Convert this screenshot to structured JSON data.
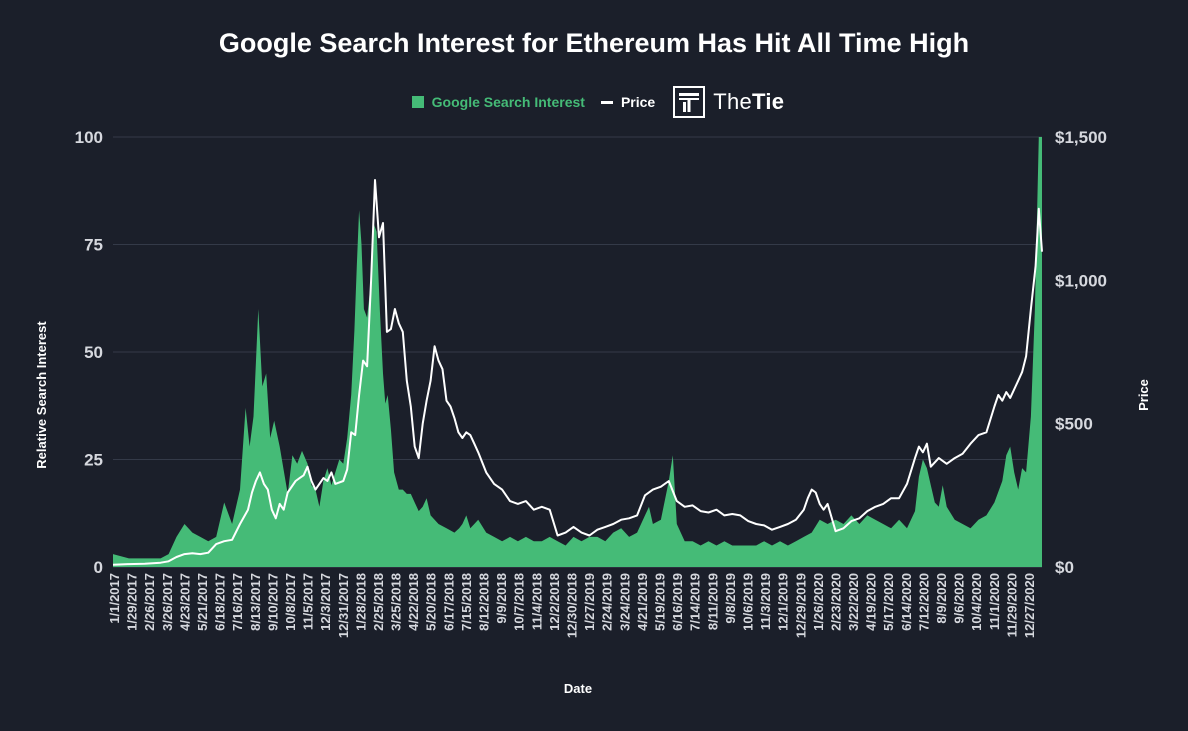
{
  "chart_data": {
    "type": "area",
    "title": "Google Search Interest for Ethereum Has Hit All Time High",
    "xlabel": "Date",
    "ylabel_left": "Relative Search Interest",
    "ylabel_right": "Price",
    "ylim_left": [
      0,
      100
    ],
    "ylim_right": [
      0,
      1500
    ],
    "yticks_left": [
      "0",
      "25",
      "50",
      "75",
      "100"
    ],
    "yticks_right": [
      "$0",
      "$500",
      "$1,000",
      "$1,500"
    ],
    "grid": true,
    "legend_position": "top-center",
    "x_tick_labels": [
      "1/1/2017",
      "1/29/2017",
      "2/26/2017",
      "3/26/2017",
      "4/23/2017",
      "5/21/2017",
      "6/18/2017",
      "7/16/2017",
      "8/13/2017",
      "9/10/2017",
      "10/8/2017",
      "11/5/2017",
      "12/3/2017",
      "12/31/2017",
      "1/28/2018",
      "2/25/2018",
      "3/25/2018",
      "4/22/2018",
      "5/20/2018",
      "6/17/2018",
      "7/15/2018",
      "8/12/2018",
      "9/9/2018",
      "10/7/2018",
      "11/4/2018",
      "12/2/2018",
      "12/30/2018",
      "1/27/2019",
      "2/24/2019",
      "3/24/2019",
      "4/21/2019",
      "5/19/2019",
      "6/16/2019",
      "7/14/2019",
      "8/11/2019",
      "9/8/2019",
      "10/6/2019",
      "11/3/2019",
      "12/1/2019",
      "12/29/2019",
      "1/26/2020",
      "2/23/2020",
      "3/22/2020",
      "4/19/2020",
      "5/17/2020",
      "6/14/2020",
      "7/12/2020",
      "8/9/2020",
      "9/6/2020",
      "10/4/2020",
      "11/1/2020",
      "11/29/2020",
      "12/27/2020"
    ],
    "series": [
      {
        "name": "Google Search Interest",
        "axis": "left",
        "color": "#45bb77",
        "points": [
          [
            0,
            3
          ],
          [
            2,
            2
          ],
          [
            4,
            2
          ],
          [
            6,
            2
          ],
          [
            7,
            3
          ],
          [
            8,
            7
          ],
          [
            9,
            10
          ],
          [
            10,
            8
          ],
          [
            11,
            7
          ],
          [
            12,
            6
          ],
          [
            13,
            7
          ],
          [
            14,
            15
          ],
          [
            15,
            10
          ],
          [
            16,
            18
          ],
          [
            16.7,
            37
          ],
          [
            17.2,
            28
          ],
          [
            17.7,
            35
          ],
          [
            18.3,
            60
          ],
          [
            18.8,
            42
          ],
          [
            19.3,
            45
          ],
          [
            19.8,
            30
          ],
          [
            20.3,
            34
          ],
          [
            21,
            28
          ],
          [
            22,
            17
          ],
          [
            22.6,
            26
          ],
          [
            23.2,
            24
          ],
          [
            23.8,
            27
          ],
          [
            24.5,
            24
          ],
          [
            25,
            19
          ],
          [
            25.5,
            18
          ],
          [
            26,
            14
          ],
          [
            26.5,
            20
          ],
          [
            27,
            23
          ],
          [
            27.5,
            19
          ],
          [
            28,
            22
          ],
          [
            28.5,
            25
          ],
          [
            29,
            24
          ],
          [
            29.5,
            30
          ],
          [
            30,
            40
          ],
          [
            30.4,
            55
          ],
          [
            30.7,
            70
          ],
          [
            31,
            83
          ],
          [
            31.3,
            75
          ],
          [
            31.6,
            60
          ],
          [
            32,
            58
          ],
          [
            32.4,
            65
          ],
          [
            32.8,
            80
          ],
          [
            33.2,
            78
          ],
          [
            33.6,
            60
          ],
          [
            34,
            45
          ],
          [
            34.3,
            38
          ],
          [
            34.6,
            40
          ],
          [
            35,
            32
          ],
          [
            35.4,
            22
          ],
          [
            36,
            18
          ],
          [
            36.5,
            18
          ],
          [
            37,
            17
          ],
          [
            37.5,
            17
          ],
          [
            38,
            15
          ],
          [
            38.5,
            13
          ],
          [
            39,
            14
          ],
          [
            39.5,
            16
          ],
          [
            40,
            12
          ],
          [
            41,
            10
          ],
          [
            42,
            9
          ],
          [
            43,
            8
          ],
          [
            43.6,
            9
          ],
          [
            44,
            10
          ],
          [
            44.5,
            12
          ],
          [
            45,
            9
          ],
          [
            45.5,
            10
          ],
          [
            46,
            11
          ],
          [
            47,
            8
          ],
          [
            48,
            7
          ],
          [
            49,
            6
          ],
          [
            50,
            7
          ],
          [
            51,
            6
          ],
          [
            52,
            7
          ],
          [
            53,
            6
          ],
          [
            54,
            6
          ],
          [
            55,
            7
          ],
          [
            56,
            6
          ],
          [
            57,
            5
          ],
          [
            58,
            7
          ],
          [
            59,
            6
          ],
          [
            60,
            7
          ],
          [
            61,
            7
          ],
          [
            62,
            6
          ],
          [
            63,
            8
          ],
          [
            64,
            9
          ],
          [
            65,
            7
          ],
          [
            66,
            8
          ],
          [
            67,
            12
          ],
          [
            67.5,
            14
          ],
          [
            68,
            10
          ],
          [
            69,
            11
          ],
          [
            70,
            20
          ],
          [
            70.5,
            26
          ],
          [
            71,
            10
          ],
          [
            72,
            6
          ],
          [
            73,
            6
          ],
          [
            74,
            5
          ],
          [
            75,
            6
          ],
          [
            76,
            5
          ],
          [
            77,
            6
          ],
          [
            78,
            5
          ],
          [
            79,
            5
          ],
          [
            80,
            5
          ],
          [
            81,
            5
          ],
          [
            82,
            6
          ],
          [
            83,
            5
          ],
          [
            84,
            6
          ],
          [
            85,
            5
          ],
          [
            86,
            6
          ],
          [
            87,
            7
          ],
          [
            88,
            8
          ],
          [
            89,
            11
          ],
          [
            90,
            10
          ],
          [
            91,
            11
          ],
          [
            92,
            10
          ],
          [
            93,
            12
          ],
          [
            94,
            10
          ],
          [
            95,
            12
          ],
          [
            96,
            11
          ],
          [
            97,
            10
          ],
          [
            98,
            9
          ],
          [
            99,
            11
          ],
          [
            100,
            9
          ],
          [
            101,
            13
          ],
          [
            101.5,
            21
          ],
          [
            102,
            25
          ],
          [
            102.5,
            23
          ],
          [
            103,
            19
          ],
          [
            103.5,
            15
          ],
          [
            104,
            14
          ],
          [
            104.5,
            19
          ],
          [
            105,
            14
          ],
          [
            106,
            11
          ],
          [
            107,
            10
          ],
          [
            108,
            9
          ],
          [
            109,
            11
          ],
          [
            110,
            12
          ],
          [
            111,
            15
          ],
          [
            112,
            20
          ],
          [
            112.5,
            26
          ],
          [
            113,
            28
          ],
          [
            113.5,
            22
          ],
          [
            114,
            18
          ],
          [
            114.5,
            23
          ],
          [
            115,
            22
          ],
          [
            115.6,
            35
          ],
          [
            116.1,
            60
          ],
          [
            116.6,
            100
          ],
          [
            117,
            100
          ]
        ]
      },
      {
        "name": "Price",
        "axis": "right",
        "color": "#ffffff",
        "points": [
          [
            0,
            8
          ],
          [
            2,
            10
          ],
          [
            4,
            11
          ],
          [
            6,
            15
          ],
          [
            7,
            20
          ],
          [
            8,
            35
          ],
          [
            9,
            45
          ],
          [
            10,
            48
          ],
          [
            11,
            45
          ],
          [
            12,
            50
          ],
          [
            13,
            80
          ],
          [
            14,
            90
          ],
          [
            15,
            95
          ],
          [
            16,
            150
          ],
          [
            17,
            200
          ],
          [
            17.5,
            260
          ],
          [
            18,
            300
          ],
          [
            18.5,
            330
          ],
          [
            19,
            290
          ],
          [
            19.5,
            270
          ],
          [
            20,
            200
          ],
          [
            20.5,
            170
          ],
          [
            21,
            220
          ],
          [
            21.5,
            200
          ],
          [
            22,
            260
          ],
          [
            23,
            300
          ],
          [
            23.5,
            310
          ],
          [
            24,
            320
          ],
          [
            24.5,
            350
          ],
          [
            25,
            300
          ],
          [
            25.5,
            270
          ],
          [
            26,
            290
          ],
          [
            26.5,
            310
          ],
          [
            27,
            300
          ],
          [
            27.5,
            330
          ],
          [
            28,
            290
          ],
          [
            29,
            300
          ],
          [
            29.5,
            340
          ],
          [
            30,
            470
          ],
          [
            30.5,
            460
          ],
          [
            31,
            600
          ],
          [
            31.5,
            720
          ],
          [
            32,
            700
          ],
          [
            32.5,
            1000
          ],
          [
            33,
            1350
          ],
          [
            33.5,
            1150
          ],
          [
            34,
            1200
          ],
          [
            34.5,
            820
          ],
          [
            35,
            830
          ],
          [
            35.5,
            900
          ],
          [
            36,
            850
          ],
          [
            36.5,
            820
          ],
          [
            37,
            650
          ],
          [
            37.5,
            560
          ],
          [
            38,
            420
          ],
          [
            38.5,
            380
          ],
          [
            39,
            500
          ],
          [
            39.5,
            580
          ],
          [
            40,
            650
          ],
          [
            40.5,
            770
          ],
          [
            41,
            720
          ],
          [
            41.5,
            690
          ],
          [
            42,
            580
          ],
          [
            42.5,
            560
          ],
          [
            43,
            520
          ],
          [
            43.5,
            470
          ],
          [
            44,
            450
          ],
          [
            44.5,
            470
          ],
          [
            45,
            460
          ],
          [
            45.5,
            430
          ],
          [
            46,
            400
          ],
          [
            47,
            330
          ],
          [
            48,
            290
          ],
          [
            49,
            270
          ],
          [
            50,
            230
          ],
          [
            51,
            220
          ],
          [
            52,
            230
          ],
          [
            53,
            200
          ],
          [
            54,
            210
          ],
          [
            55,
            200
          ],
          [
            56,
            110
          ],
          [
            57,
            120
          ],
          [
            58,
            140
          ],
          [
            59,
            120
          ],
          [
            60,
            110
          ],
          [
            61,
            130
          ],
          [
            62,
            140
          ],
          [
            63,
            150
          ],
          [
            64,
            165
          ],
          [
            65,
            170
          ],
          [
            66,
            180
          ],
          [
            67,
            250
          ],
          [
            68,
            270
          ],
          [
            69,
            280
          ],
          [
            70,
            300
          ],
          [
            71,
            230
          ],
          [
            72,
            210
          ],
          [
            73,
            215
          ],
          [
            74,
            195
          ],
          [
            75,
            190
          ],
          [
            76,
            200
          ],
          [
            77,
            180
          ],
          [
            78,
            185
          ],
          [
            79,
            180
          ],
          [
            80,
            160
          ],
          [
            81,
            150
          ],
          [
            82,
            145
          ],
          [
            83,
            130
          ],
          [
            84,
            140
          ],
          [
            85,
            150
          ],
          [
            86,
            165
          ],
          [
            87,
            200
          ],
          [
            87.5,
            240
          ],
          [
            88,
            270
          ],
          [
            88.5,
            260
          ],
          [
            89,
            220
          ],
          [
            89.5,
            200
          ],
          [
            90,
            220
          ],
          [
            91,
            125
          ],
          [
            92,
            135
          ],
          [
            93,
            160
          ],
          [
            94,
            170
          ],
          [
            95,
            195
          ],
          [
            96,
            210
          ],
          [
            97,
            220
          ],
          [
            98,
            240
          ],
          [
            99,
            240
          ],
          [
            100,
            290
          ],
          [
            101,
            380
          ],
          [
            101.5,
            420
          ],
          [
            102,
            400
          ],
          [
            102.5,
            430
          ],
          [
            103,
            350
          ],
          [
            104,
            380
          ],
          [
            105,
            360
          ],
          [
            106,
            380
          ],
          [
            107,
            395
          ],
          [
            108,
            430
          ],
          [
            109,
            460
          ],
          [
            110,
            470
          ],
          [
            111,
            560
          ],
          [
            111.5,
            600
          ],
          [
            112,
            580
          ],
          [
            112.5,
            610
          ],
          [
            113,
            590
          ],
          [
            113.5,
            620
          ],
          [
            114,
            650
          ],
          [
            114.5,
            680
          ],
          [
            115,
            735
          ],
          [
            115.6,
            900
          ],
          [
            116.2,
            1050
          ],
          [
            116.6,
            1250
          ],
          [
            117,
            1100
          ]
        ]
      }
    ]
  },
  "legend": {
    "search_label": "Google Search Interest",
    "price_label": "Price",
    "search_color": "#45bb77",
    "price_color": "#ffffff"
  },
  "brand": {
    "name_light": "The",
    "name_bold": "Tie",
    "icon": "thetie-logo-icon"
  }
}
